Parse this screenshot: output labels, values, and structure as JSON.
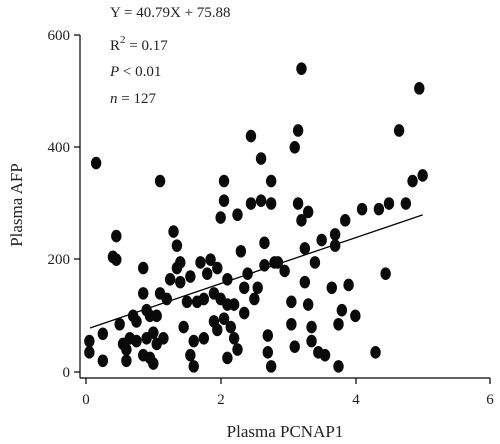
{
  "chart_data": {
    "type": "scatter",
    "xlabel": "Plasma PCNAP1",
    "ylabel": "Plasma AFP",
    "xlim": [
      0,
      6
    ],
    "ylim": [
      0,
      600
    ],
    "xticks": [
      "0",
      "2",
      "4",
      "6"
    ],
    "yticks": [
      "0",
      "200",
      "400",
      "600"
    ],
    "annotations": {
      "equation": "Y = 40.79X + 75.88",
      "r2_prefix": "R",
      "r2_exp": "2",
      "r2_value": " = 0.17",
      "p_symbol": "P",
      "p_value": " < 0.01",
      "n_symbol": "n",
      "n_value": " = 127"
    },
    "regression": {
      "slope": 40.79,
      "intercept": 75.88,
      "x_range": [
        0.06,
        5.0
      ]
    },
    "points": [
      {
        "x": 0.15,
        "y": 372
      },
      {
        "x": 0.05,
        "y": 55
      },
      {
        "x": 0.05,
        "y": 35
      },
      {
        "x": 0.25,
        "y": 68
      },
      {
        "x": 0.25,
        "y": 20
      },
      {
        "x": 0.4,
        "y": 205
      },
      {
        "x": 0.45,
        "y": 200
      },
      {
        "x": 0.45,
        "y": 242
      },
      {
        "x": 0.5,
        "y": 85
      },
      {
        "x": 0.55,
        "y": 50
      },
      {
        "x": 0.6,
        "y": 20
      },
      {
        "x": 0.65,
        "y": 60
      },
      {
        "x": 0.7,
        "y": 100
      },
      {
        "x": 0.75,
        "y": 55
      },
      {
        "x": 0.75,
        "y": 90
      },
      {
        "x": 0.85,
        "y": 185
      },
      {
        "x": 0.85,
        "y": 140
      },
      {
        "x": 0.9,
        "y": 110
      },
      {
        "x": 0.9,
        "y": 60
      },
      {
        "x": 0.95,
        "y": 25
      },
      {
        "x": 0.85,
        "y": 30
      },
      {
        "x": 0.95,
        "y": 100
      },
      {
        "x": 1.0,
        "y": 70
      },
      {
        "x": 1.0,
        "y": 15
      },
      {
        "x": 1.05,
        "y": 50
      },
      {
        "x": 1.05,
        "y": 100
      },
      {
        "x": 1.1,
        "y": 340
      },
      {
        "x": 1.1,
        "y": 140
      },
      {
        "x": 1.15,
        "y": 60
      },
      {
        "x": 1.2,
        "y": 130
      },
      {
        "x": 1.25,
        "y": 165
      },
      {
        "x": 1.3,
        "y": 250
      },
      {
        "x": 1.35,
        "y": 225
      },
      {
        "x": 1.35,
        "y": 185
      },
      {
        "x": 1.4,
        "y": 195
      },
      {
        "x": 1.4,
        "y": 160
      },
      {
        "x": 1.45,
        "y": 80
      },
      {
        "x": 1.5,
        "y": 125
      },
      {
        "x": 1.55,
        "y": 170
      },
      {
        "x": 1.55,
        "y": 30
      },
      {
        "x": 1.6,
        "y": 10
      },
      {
        "x": 1.65,
        "y": 125
      },
      {
        "x": 1.7,
        "y": 195
      },
      {
        "x": 1.75,
        "y": 60
      },
      {
        "x": 1.75,
        "y": 130
      },
      {
        "x": 1.8,
        "y": 175
      },
      {
        "x": 1.85,
        "y": 200
      },
      {
        "x": 1.9,
        "y": 140
      },
      {
        "x": 1.9,
        "y": 90
      },
      {
        "x": 1.95,
        "y": 75
      },
      {
        "x": 1.95,
        "y": 185
      },
      {
        "x": 2.0,
        "y": 130
      },
      {
        "x": 2.0,
        "y": 275
      },
      {
        "x": 2.05,
        "y": 340
      },
      {
        "x": 2.05,
        "y": 305
      },
      {
        "x": 2.05,
        "y": 95
      },
      {
        "x": 2.1,
        "y": 120
      },
      {
        "x": 2.1,
        "y": 165
      },
      {
        "x": 2.1,
        "y": 25
      },
      {
        "x": 2.15,
        "y": 80
      },
      {
        "x": 2.2,
        "y": 120
      },
      {
        "x": 2.2,
        "y": 60
      },
      {
        "x": 2.25,
        "y": 280
      },
      {
        "x": 2.25,
        "y": 40
      },
      {
        "x": 2.3,
        "y": 215
      },
      {
        "x": 2.35,
        "y": 150
      },
      {
        "x": 2.35,
        "y": 105
      },
      {
        "x": 2.4,
        "y": 175
      },
      {
        "x": 2.45,
        "y": 420
      },
      {
        "x": 2.45,
        "y": 300
      },
      {
        "x": 2.5,
        "y": 130
      },
      {
        "x": 2.55,
        "y": 150
      },
      {
        "x": 2.6,
        "y": 380
      },
      {
        "x": 2.6,
        "y": 305
      },
      {
        "x": 2.65,
        "y": 190
      },
      {
        "x": 2.65,
        "y": 230
      },
      {
        "x": 2.7,
        "y": 65
      },
      {
        "x": 2.7,
        "y": 35
      },
      {
        "x": 2.75,
        "y": 300
      },
      {
        "x": 2.75,
        "y": 340
      },
      {
        "x": 2.75,
        "y": 10
      },
      {
        "x": 2.8,
        "y": 195
      },
      {
        "x": 2.85,
        "y": 195
      },
      {
        "x": 2.95,
        "y": 180
      },
      {
        "x": 3.05,
        "y": 125
      },
      {
        "x": 3.05,
        "y": 85
      },
      {
        "x": 3.1,
        "y": 400
      },
      {
        "x": 3.1,
        "y": 45
      },
      {
        "x": 3.15,
        "y": 430
      },
      {
        "x": 3.15,
        "y": 300
      },
      {
        "x": 3.2,
        "y": 540
      },
      {
        "x": 3.2,
        "y": 270
      },
      {
        "x": 3.25,
        "y": 220
      },
      {
        "x": 3.25,
        "y": 160
      },
      {
        "x": 3.3,
        "y": 285
      },
      {
        "x": 3.3,
        "y": 120
      },
      {
        "x": 3.35,
        "y": 80
      },
      {
        "x": 3.35,
        "y": 55
      },
      {
        "x": 3.4,
        "y": 195
      },
      {
        "x": 3.45,
        "y": 35
      },
      {
        "x": 3.5,
        "y": 235
      },
      {
        "x": 3.55,
        "y": 30
      },
      {
        "x": 3.65,
        "y": 150
      },
      {
        "x": 3.7,
        "y": 245
      },
      {
        "x": 3.7,
        "y": 225
      },
      {
        "x": 3.75,
        "y": 10
      },
      {
        "x": 3.75,
        "y": 85
      },
      {
        "x": 3.8,
        "y": 110
      },
      {
        "x": 3.85,
        "y": 270
      },
      {
        "x": 3.9,
        "y": 155
      },
      {
        "x": 4.0,
        "y": 100
      },
      {
        "x": 4.1,
        "y": 290
      },
      {
        "x": 4.3,
        "y": 35
      },
      {
        "x": 4.35,
        "y": 290
      },
      {
        "x": 4.5,
        "y": 300
      },
      {
        "x": 4.65,
        "y": 430
      },
      {
        "x": 4.75,
        "y": 300
      },
      {
        "x": 4.85,
        "y": 340
      },
      {
        "x": 4.95,
        "y": 505
      },
      {
        "x": 5.0,
        "y": 350
      },
      {
        "x": 4.45,
        "y": 175
      },
      {
        "x": 0.6,
        "y": 40
      },
      {
        "x": 1.6,
        "y": 55
      }
    ]
  }
}
